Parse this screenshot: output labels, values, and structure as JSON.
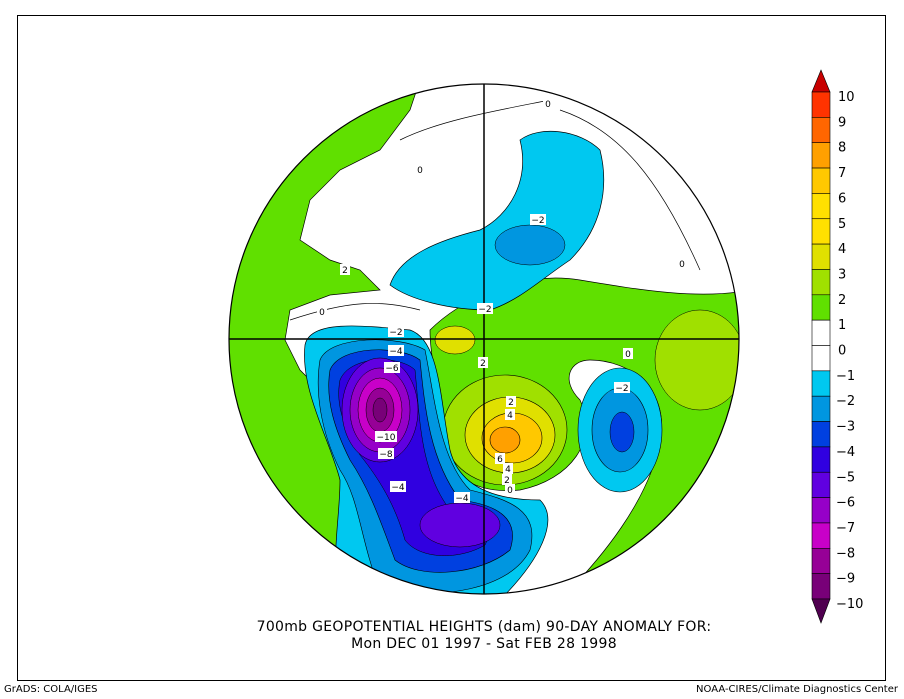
{
  "title": {
    "line1": "700mb GEOPOTENTIAL HEIGHTS (dam)   90-DAY ANOMALY FOR:",
    "line2": "Mon DEC 01 1997 - Sat FEB 28 1998"
  },
  "footer": {
    "left": "GrADS: COLA/IGES",
    "right": "NOAA-CIRES/Climate Diagnostics Center"
  },
  "colorbar": {
    "labels": [
      "10",
      "9",
      "8",
      "7",
      "6",
      "5",
      "4",
      "3",
      "2",
      "1",
      "0",
      "-1",
      "-2",
      "-3",
      "-4",
      "-5",
      "-6",
      "-7",
      "-8",
      "-9",
      "-10"
    ],
    "colors": [
      "#ff3300",
      "#ff6600",
      "#ffa000",
      "#ffc800",
      "#ffe000",
      "#ffe000",
      "#e0e000",
      "#a0e000",
      "#60e000",
      "#ffffff",
      "#ffffff",
      "#00c8f0",
      "#0096e0",
      "#0040e0",
      "#3000e0",
      "#6000e0",
      "#9600c8",
      "#c800c8",
      "#960096",
      "#780078"
    ],
    "top_arrow_color": "#c80000",
    "bottom_arrow_color": "#500050"
  },
  "map": {
    "contour_labels": [
      {
        "text": "0"
      },
      {
        "text": "0"
      },
      {
        "text": "-2"
      },
      {
        "text": "2"
      },
      {
        "text": "0"
      },
      {
        "text": "-2"
      },
      {
        "text": "-2"
      },
      {
        "text": "-4"
      },
      {
        "text": "-6"
      },
      {
        "text": "-10"
      },
      {
        "text": "-8"
      },
      {
        "text": "-4"
      },
      {
        "text": "-4"
      },
      {
        "text": "2"
      },
      {
        "text": "2"
      },
      {
        "text": "4"
      },
      {
        "text": "6"
      },
      {
        "text": "4"
      },
      {
        "text": "2"
      },
      {
        "text": "0"
      },
      {
        "text": "-2"
      },
      {
        "text": "0"
      },
      {
        "text": "0"
      }
    ]
  }
}
